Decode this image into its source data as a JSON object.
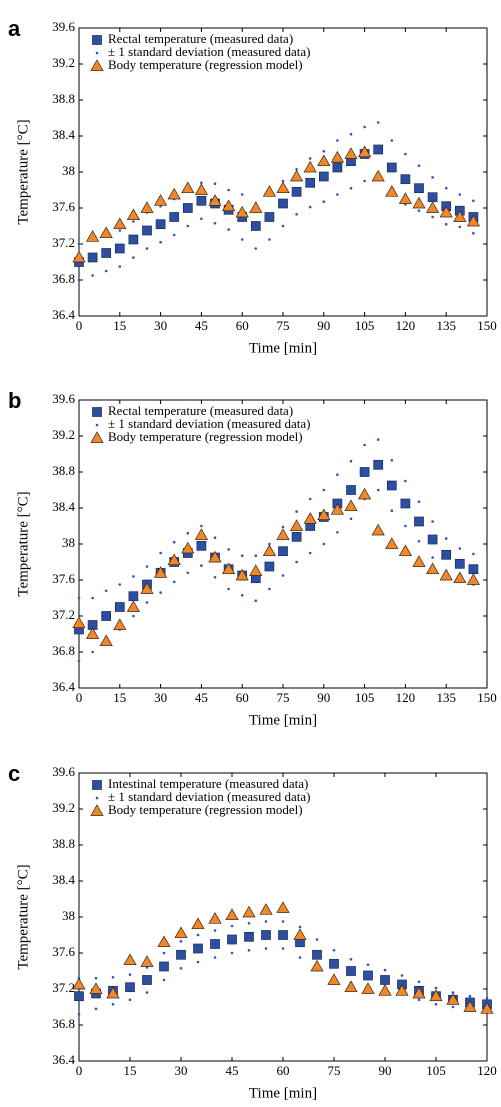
{
  "chart_data": [
    {
      "type": "scatter",
      "panel_label": "a",
      "xlabel": "Time [min]",
      "ylabel": "Temperature [°C]",
      "xlim": [
        0,
        150
      ],
      "xticks": [
        0,
        15,
        30,
        45,
        60,
        75,
        90,
        105,
        120,
        135,
        150
      ],
      "ylim": [
        36.4,
        39.6
      ],
      "yticks": [
        36.4,
        36.8,
        37.2,
        37.6,
        38,
        38.4,
        38.8,
        39.2,
        39.6
      ],
      "legend": "upper left",
      "x": [
        0,
        5,
        10,
        15,
        20,
        25,
        30,
        35,
        40,
        45,
        50,
        55,
        60,
        65,
        70,
        75,
        80,
        85,
        90,
        95,
        100,
        105,
        110,
        115,
        120,
        125,
        130,
        135,
        140,
        145
      ],
      "series": [
        {
          "name": "Rectal temperature (measured data)",
          "color": "#2d4fa1",
          "marker": "square",
          "values": [
            37.0,
            37.05,
            37.1,
            37.15,
            37.25,
            37.35,
            37.42,
            37.5,
            37.6,
            37.68,
            37.65,
            37.58,
            37.5,
            37.4,
            37.5,
            37.65,
            37.78,
            37.88,
            37.95,
            38.05,
            38.12,
            38.2,
            38.25,
            38.05,
            37.92,
            37.82,
            37.72,
            37.62,
            37.57,
            37.5
          ]
        },
        {
          "name": "± 1 standard deviation (measured data)",
          "color": "#2f4fd0",
          "marker": "dot",
          "values": [
            0.2,
            0.2,
            0.2,
            0.2,
            0.2,
            0.2,
            0.2,
            0.2,
            0.2,
            0.2,
            0.22,
            0.22,
            0.25,
            0.25,
            0.25,
            0.25,
            0.25,
            0.27,
            0.28,
            0.3,
            0.3,
            0.3,
            0.3,
            0.3,
            0.28,
            0.25,
            0.22,
            0.2,
            0.18,
            0.18
          ]
        },
        {
          "name": "Body temperature (regression model)",
          "color": "#f0872a",
          "marker": "triangle",
          "values": [
            37.05,
            37.28,
            37.32,
            37.42,
            37.52,
            37.6,
            37.68,
            37.75,
            37.82,
            37.8,
            37.68,
            37.62,
            37.55,
            37.6,
            37.78,
            37.82,
            37.95,
            38.05,
            38.12,
            38.16,
            38.2,
            38.22,
            37.95,
            37.78,
            37.7,
            37.65,
            37.6,
            37.55,
            37.5,
            37.45
          ]
        }
      ]
    },
    {
      "type": "scatter",
      "panel_label": "b",
      "xlabel": "Time [min]",
      "ylabel": "Temperature [°C]",
      "xlim": [
        0,
        150
      ],
      "xticks": [
        0,
        15,
        30,
        45,
        60,
        75,
        90,
        105,
        120,
        135,
        150
      ],
      "ylim": [
        36.4,
        39.6
      ],
      "yticks": [
        36.4,
        36.8,
        37.2,
        37.6,
        38,
        38.4,
        38.8,
        39.2,
        39.6
      ],
      "legend": "upper left",
      "x": [
        0,
        5,
        10,
        15,
        20,
        25,
        30,
        35,
        40,
        45,
        50,
        55,
        60,
        65,
        70,
        75,
        80,
        85,
        90,
        95,
        100,
        105,
        110,
        115,
        120,
        125,
        130,
        135,
        140,
        145
      ],
      "series": [
        {
          "name": "Rectal temperature (measured data)",
          "color": "#2d4fa1",
          "marker": "square",
          "values": [
            37.05,
            37.1,
            37.2,
            37.3,
            37.42,
            37.55,
            37.68,
            37.8,
            37.9,
            37.98,
            37.85,
            37.72,
            37.65,
            37.62,
            37.75,
            37.92,
            38.08,
            38.2,
            38.3,
            38.45,
            38.6,
            38.8,
            38.88,
            38.65,
            38.45,
            38.25,
            38.05,
            37.88,
            37.78,
            37.72
          ]
        },
        {
          "name": "± 1 standard deviation (measured data)",
          "color": "#2f4fd0",
          "marker": "dot",
          "values": [
            0.35,
            0.3,
            0.28,
            0.25,
            0.22,
            0.2,
            0.22,
            0.22,
            0.22,
            0.22,
            0.22,
            0.22,
            0.22,
            0.25,
            0.25,
            0.27,
            0.28,
            0.3,
            0.3,
            0.32,
            0.32,
            0.3,
            0.28,
            0.28,
            0.25,
            0.22,
            0.2,
            0.18,
            0.17,
            0.17
          ]
        },
        {
          "name": "Body temperature (regression model)",
          "color": "#f0872a",
          "marker": "triangle",
          "values": [
            37.12,
            37.0,
            36.92,
            37.1,
            37.3,
            37.5,
            37.68,
            37.82,
            37.95,
            38.1,
            37.85,
            37.72,
            37.65,
            37.7,
            37.92,
            38.1,
            38.2,
            38.28,
            38.32,
            38.38,
            38.42,
            38.55,
            38.15,
            38.0,
            37.92,
            37.8,
            37.72,
            37.65,
            37.62,
            37.6
          ]
        }
      ]
    },
    {
      "type": "scatter",
      "panel_label": "c",
      "xlabel": "Time [min]",
      "ylabel": "Temperature [°C]",
      "xlim": [
        0,
        120
      ],
      "xticks": [
        0,
        15,
        30,
        45,
        60,
        75,
        90,
        105,
        120
      ],
      "ylim": [
        36.4,
        39.6
      ],
      "yticks": [
        36.4,
        36.8,
        37.2,
        37.6,
        38,
        38.4,
        38.8,
        39.2,
        39.6
      ],
      "legend": "upper left",
      "x": [
        0,
        5,
        10,
        15,
        20,
        25,
        30,
        35,
        40,
        45,
        50,
        55,
        60,
        65,
        70,
        75,
        80,
        85,
        90,
        95,
        100,
        105,
        110,
        115,
        120
      ],
      "series": [
        {
          "name": "Intestinal temperature (measured data)",
          "color": "#2d4fa1",
          "marker": "square",
          "values": [
            37.12,
            37.15,
            37.18,
            37.22,
            37.3,
            37.45,
            37.58,
            37.65,
            37.7,
            37.75,
            37.78,
            37.8,
            37.8,
            37.72,
            37.58,
            37.48,
            37.4,
            37.35,
            37.3,
            37.25,
            37.18,
            37.12,
            37.08,
            37.05,
            37.03
          ]
        },
        {
          "name": "± 1 standard deviation (measured data)",
          "color": "#2f4fd0",
          "marker": "dot",
          "values": [
            0.2,
            0.17,
            0.15,
            0.14,
            0.14,
            0.15,
            0.15,
            0.15,
            0.15,
            0.15,
            0.15,
            0.15,
            0.15,
            0.17,
            0.17,
            0.15,
            0.13,
            0.12,
            0.11,
            0.1,
            0.1,
            0.09,
            0.08,
            0.07,
            0.07
          ]
        },
        {
          "name": "Body temperature (regression model)",
          "color": "#f0872a",
          "marker": "triangle",
          "values": [
            37.25,
            37.2,
            37.15,
            37.52,
            37.5,
            37.72,
            37.82,
            37.92,
            37.98,
            38.02,
            38.05,
            38.08,
            38.1,
            37.8,
            37.45,
            37.3,
            37.22,
            37.2,
            37.18,
            37.18,
            37.15,
            37.12,
            37.08,
            37.0,
            36.98
          ]
        }
      ]
    }
  ]
}
